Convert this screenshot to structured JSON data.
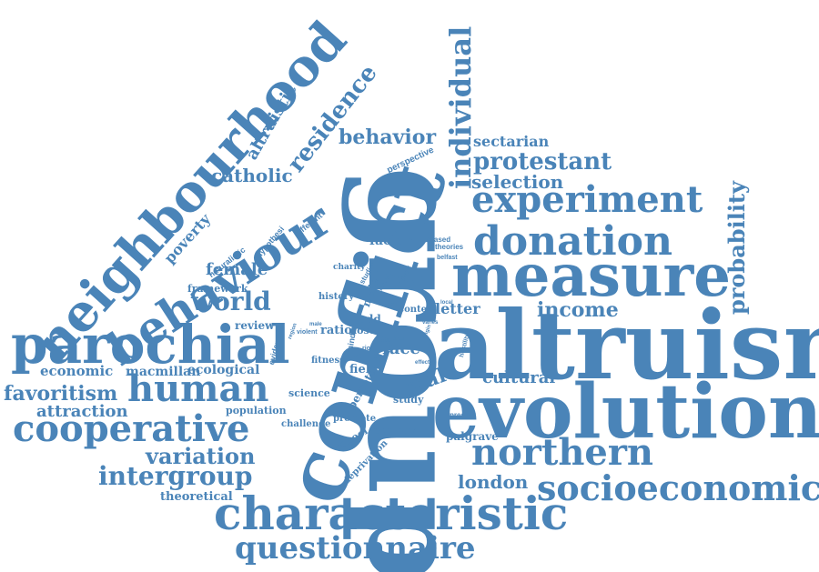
{
  "color": "#4a84b8",
  "words": {
    "altruism": "altruism",
    "group": "group",
    "conflict": "conflict",
    "evolution": "evolution",
    "measure": "measure",
    "parochial": "parochial",
    "neighbourhood": "neighbourhood",
    "behaviour": "behaviour",
    "characteristic": "characteristic",
    "experiment": "experiment",
    "donation": "donation",
    "human": "human",
    "cooperative": "cooperative",
    "northern": "northern",
    "socioeconomic": "socioeconomic",
    "questionnaire": "questionnaire",
    "intergroup": "intergroup",
    "individual": "individual",
    "protestant": "protestant",
    "probability": "probability",
    "world": "world",
    "variation": "variation",
    "favoritism": "favoritism",
    "residence": "residence",
    "behavior": "behavior",
    "selection": "selection",
    "income": "income",
    "catholic": "catholic",
    "london": "london",
    "attraction": "attraction",
    "sectarian": "sectarian",
    "cultural": "cultural",
    "real": "real",
    "female": "female",
    "altruistic": "altruistic",
    "economic": "economic",
    "macmillan": "macmillan",
    "ecological": "ecological",
    "poverty": "poverty",
    "theoretical": "theoretical",
    "face": "face",
    "letter": "letter",
    "factor": "factor",
    "inter": "inter",
    "palgrave": "palgrave",
    "perspective": "perspective",
    "naturalistic": "naturalistic",
    "hypothesi": "hypothesi",
    "different": "different",
    "framework": "framework",
    "review": "review",
    "evidence": "evidence",
    "population": "population",
    "science": "science",
    "challenge": "challenge",
    "promote": "promote",
    "school": "school",
    "deprivation": "deprivation",
    "ecology": "ecology",
    "study": "study",
    "perrett": "perrett",
    "field": "field",
    "value": "value",
    "fitness": "fitness",
    "ratio": "ratio",
    "odd": "odd",
    "lost": "lost",
    "mind": "mind",
    "male": "male",
    "context": "context",
    "history": "history",
    "charity": "charity",
    "studies": "studies",
    "unbiased": "unbiased",
    "theories": "theories",
    "belfast": "belfast",
    "case": "case",
    "present": "present",
    "inclusive": "inclusive",
    "hostility": "hostility",
    "violent": "violent",
    "riot": "riot",
    "varies": "varies",
    "target": "target",
    "test": "test",
    "origin": "origin",
    "recent": "recent",
    "area": "area",
    "local": "local",
    "region": "region",
    "male_small": "male",
    "effect": "effect"
  }
}
